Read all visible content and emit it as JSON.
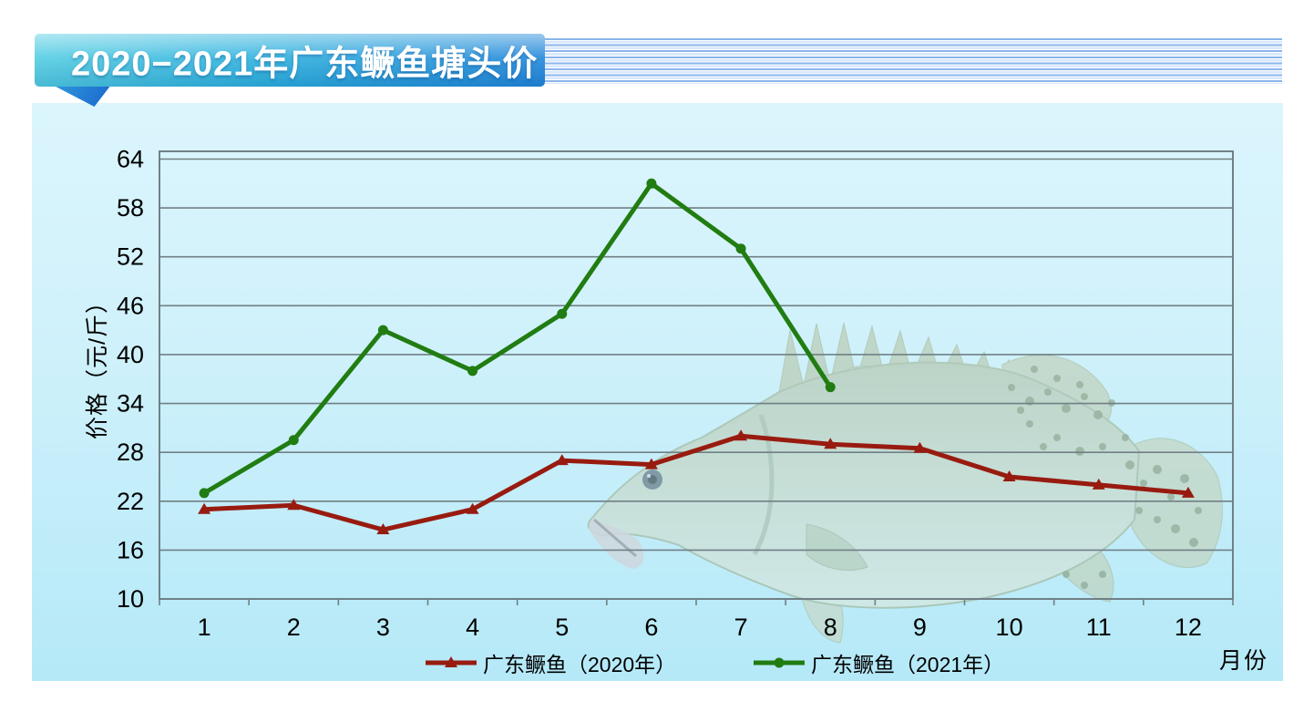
{
  "banner": {
    "title": "2020−2021年广东鳜鱼塘头价"
  },
  "axes": {
    "ylabel": "价格（元/斤）",
    "xlabel": "月份"
  },
  "colors": {
    "series_2020": "#981b10",
    "series_2021": "#217c12",
    "grid": "#708086",
    "panel_top": "#dbf5fc",
    "panel_bottom": "#b5e9f8",
    "banner_left": "#52cde2",
    "banner_right": "#1f85d9",
    "pinstripe": "#8ab5ed"
  },
  "chart_data": {
    "type": "line",
    "title": "2020−2021年广东鳜鱼塘头价",
    "xlabel": "月份",
    "ylabel": "价格（元/斤）",
    "x": [
      1,
      2,
      3,
      4,
      5,
      6,
      7,
      8,
      9,
      10,
      11,
      12
    ],
    "y_ticks": [
      10,
      16,
      22,
      28,
      34,
      40,
      46,
      52,
      58,
      64
    ],
    "ylim": [
      10,
      65
    ],
    "grid": true,
    "legend_position": "bottom",
    "series": [
      {
        "name": "广东鳜鱼（2020年）",
        "color": "#981b10",
        "marker": "triangle",
        "values": [
          21,
          21.5,
          18.5,
          21,
          27,
          26.5,
          30,
          29,
          28.5,
          25,
          24,
          23
        ]
      },
      {
        "name": "广东鳜鱼（2021年）",
        "color": "#217c12",
        "marker": "circle",
        "values": [
          23,
          29.5,
          43,
          38,
          45,
          61,
          53,
          36
        ]
      }
    ]
  }
}
